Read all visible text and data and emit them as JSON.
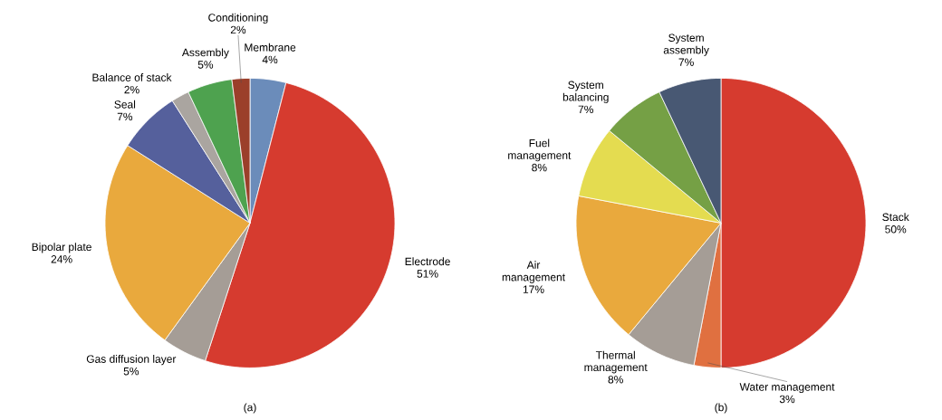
{
  "chart_data": [
    {
      "type": "pie",
      "title": "(a)",
      "categories": [
        "Membrane",
        "Electrode",
        "Gas diffusion layer",
        "Bipolar plate",
        "Seal",
        "Balance of stack",
        "Assembly",
        "Conditioning"
      ],
      "values": [
        4,
        51,
        5,
        24,
        7,
        2,
        5,
        2
      ],
      "value_labels": [
        "4%",
        "51%",
        "5%",
        "24%",
        "7%",
        "2%",
        "5%",
        "2%"
      ],
      "colors": [
        "#6b8cba",
        "#d63b2f",
        "#a59d96",
        "#e9a93d",
        "#55609c",
        "#aaa5a0",
        "#4ea24f",
        "#9b3f2a"
      ]
    },
    {
      "type": "pie",
      "title": "(b)",
      "categories": [
        "Stack",
        "Water management",
        "Thermal management",
        "Air management",
        "Fuel management",
        "System balancing",
        "System assembly"
      ],
      "values": [
        50,
        3,
        8,
        17,
        8,
        7,
        7
      ],
      "value_labels": [
        "50%",
        "3%",
        "8%",
        "17%",
        "8%",
        "7%",
        "7%"
      ],
      "colors": [
        "#d63b2f",
        "#e07040",
        "#a59d96",
        "#e9a93d",
        "#e4dc50",
        "#75a045",
        "#485873"
      ]
    }
  ]
}
